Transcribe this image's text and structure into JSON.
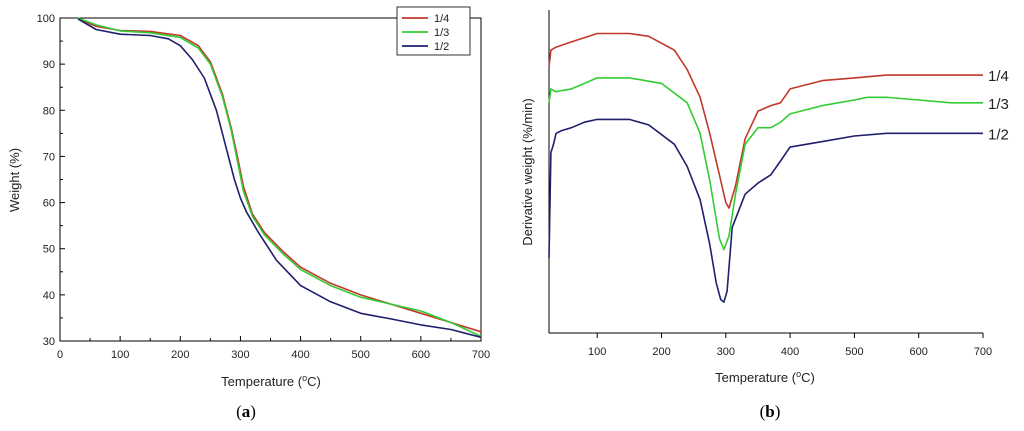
{
  "chart_data": [
    {
      "panel": "(a)",
      "type": "line",
      "xlabel": "Temperature (°C)",
      "ylabel": "Weight (%)",
      "xlim": [
        0,
        700
      ],
      "ylim": [
        30,
        100
      ],
      "xticks": [
        0,
        100,
        200,
        300,
        400,
        500,
        600,
        700
      ],
      "yticks": [
        30,
        40,
        50,
        60,
        70,
        80,
        90,
        100
      ],
      "grid": false,
      "legend": "top-right",
      "series": [
        {
          "name": "1/4",
          "color": "#c0392b",
          "x": [
            30,
            60,
            100,
            150,
            200,
            230,
            250,
            270,
            285,
            295,
            305,
            320,
            340,
            370,
            400,
            450,
            500,
            550,
            600,
            650,
            700
          ],
          "y": [
            99.8,
            98.2,
            97.3,
            97.1,
            96.2,
            94.0,
            90.5,
            83.5,
            76.0,
            70.0,
            63.5,
            57.5,
            53.5,
            49.5,
            46.0,
            42.5,
            40.0,
            38.0,
            36.0,
            34.0,
            32.0
          ]
        },
        {
          "name": "1/3",
          "color": "#33cc33",
          "x": [
            30,
            60,
            100,
            150,
            200,
            230,
            250,
            270,
            285,
            295,
            305,
            320,
            340,
            370,
            400,
            450,
            500,
            550,
            600,
            650,
            700
          ],
          "y": [
            100.0,
            98.5,
            97.2,
            96.8,
            95.8,
            93.5,
            90.0,
            83.0,
            75.5,
            69.0,
            62.5,
            57.0,
            53.0,
            49.0,
            45.5,
            42.0,
            39.5,
            38.0,
            36.5,
            34.0,
            31.0
          ]
        },
        {
          "name": "1/2",
          "color": "#1f1f6e",
          "x": [
            30,
            60,
            100,
            150,
            180,
            200,
            220,
            240,
            260,
            275,
            290,
            300,
            310,
            330,
            360,
            400,
            450,
            500,
            550,
            600,
            650,
            700
          ],
          "y": [
            99.8,
            97.5,
            96.5,
            96.2,
            95.5,
            94.0,
            91.0,
            87.0,
            80.0,
            72.5,
            65.0,
            61.0,
            58.0,
            53.5,
            47.5,
            42.0,
            38.5,
            36.0,
            34.8,
            33.5,
            32.5,
            30.8
          ]
        }
      ]
    },
    {
      "panel": "(b)",
      "type": "line",
      "xlabel": "Temperature (°C)",
      "ylabel": "Derivative weight (%/min)",
      "xlim": [
        25,
        700
      ],
      "xticks": [
        100,
        200,
        300,
        400,
        500,
        600,
        700
      ],
      "grid": false,
      "series": [
        {
          "name": "1/4",
          "color": "#c0392b",
          "x": [
            25,
            28,
            35,
            60,
            100,
            150,
            180,
            220,
            240,
            260,
            275,
            290,
            300,
            305,
            315,
            330,
            350,
            370,
            385,
            400,
            450,
            500,
            550,
            600,
            650,
            700
          ],
          "y": [
            0.86,
            0.92,
            0.93,
            0.95,
            0.98,
            0.98,
            0.97,
            0.92,
            0.85,
            0.75,
            0.62,
            0.47,
            0.37,
            0.35,
            0.43,
            0.6,
            0.7,
            0.72,
            0.73,
            0.78,
            0.81,
            0.82,
            0.83,
            0.83,
            0.83,
            0.83
          ]
        },
        {
          "name": "1/3",
          "color": "#33cc33",
          "x": [
            25,
            28,
            35,
            60,
            80,
            100,
            150,
            200,
            240,
            260,
            275,
            290,
            297,
            305,
            315,
            330,
            350,
            370,
            385,
            400,
            450,
            500,
            520,
            550,
            600,
            650,
            700
          ],
          "y": [
            0.73,
            0.78,
            0.77,
            0.78,
            0.8,
            0.82,
            0.82,
            0.8,
            0.73,
            0.62,
            0.45,
            0.24,
            0.2,
            0.25,
            0.4,
            0.58,
            0.64,
            0.64,
            0.66,
            0.69,
            0.72,
            0.74,
            0.75,
            0.75,
            0.74,
            0.73,
            0.73
          ]
        },
        {
          "name": "1/2",
          "color": "#1f1f6e",
          "x": [
            25,
            28,
            32,
            36,
            45,
            60,
            80,
            100,
            150,
            180,
            220,
            240,
            260,
            275,
            285,
            292,
            297,
            302,
            310,
            330,
            350,
            370,
            385,
            400,
            450,
            500,
            550,
            600,
            650,
            700
          ],
          "y": [
            0.17,
            0.55,
            0.58,
            0.62,
            0.63,
            0.64,
            0.66,
            0.67,
            0.67,
            0.65,
            0.58,
            0.5,
            0.38,
            0.22,
            0.08,
            0.02,
            0.01,
            0.05,
            0.28,
            0.4,
            0.44,
            0.47,
            0.52,
            0.57,
            0.59,
            0.61,
            0.62,
            0.62,
            0.62,
            0.62
          ]
        }
      ]
    }
  ],
  "labels": {
    "tick_a_x": [
      "0",
      "100",
      "200",
      "300",
      "400",
      "500",
      "600",
      "700"
    ],
    "tick_a_y": [
      "30",
      "40",
      "50",
      "60",
      "70",
      "80",
      "90",
      "100"
    ],
    "tick_b_x": [
      "100",
      "200",
      "300",
      "400",
      "500",
      "600",
      "700"
    ],
    "temp_prefix": "Temperature (",
    "temp_sup": "o",
    "temp_suffix": "C)",
    "panel_a": "a",
    "panel_b": "b"
  }
}
